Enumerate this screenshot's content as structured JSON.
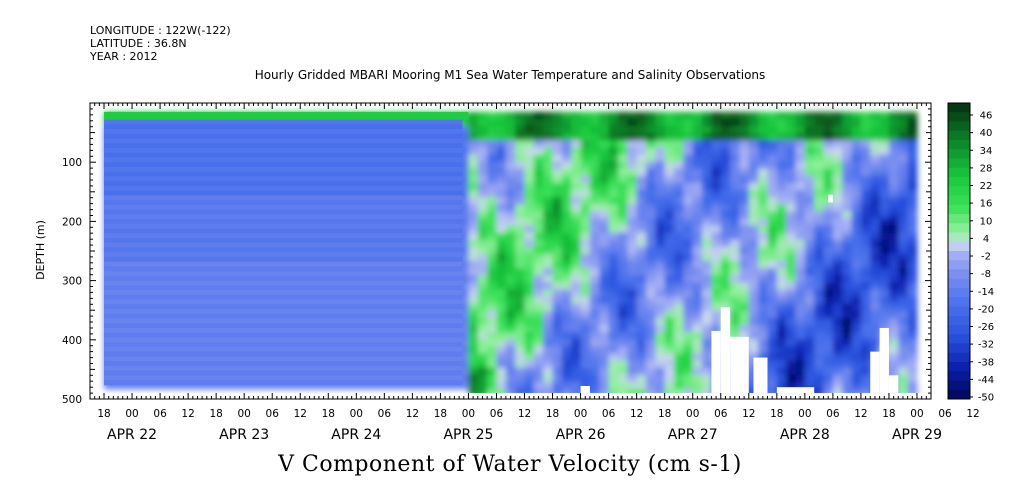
{
  "header": {
    "longitude": "LONGITUDE : 122W(-122)",
    "latitude": "LATITUDE : 36.8N",
    "year": "YEAR : 2012"
  },
  "chart_data": {
    "type": "heatmap",
    "title": "Hourly Gridded MBARI Mooring M1 Sea Water Temperature and Salinity Observations",
    "xlabel": "",
    "ylabel": "DEPTH (m)",
    "colorbar_title": "V Component of Water Velocity (cm s-1)",
    "y_ticks": [
      100,
      200,
      300,
      400,
      500
    ],
    "y_tick_labels": [
      "100",
      "200",
      "300",
      "400",
      "500"
    ],
    "ylim": [
      0,
      500
    ],
    "y_inverted": true,
    "hour_tick_labels": [
      "18",
      "00",
      "06",
      "12",
      "18",
      "00",
      "06",
      "12",
      "18",
      "00",
      "06",
      "12",
      "18",
      "00",
      "06",
      "12",
      "18",
      "00",
      "06",
      "12",
      "18",
      "00",
      "06",
      "12",
      "18",
      "00",
      "06",
      "12",
      "18",
      "00",
      "06",
      "12"
    ],
    "date_labels": [
      "APR 22",
      "APR 23",
      "APR 24",
      "APR 25",
      "APR 26",
      "APR 27",
      "APR 28",
      "APR 29"
    ],
    "x_range_hours": [
      -9,
      171
    ],
    "colorbar_levels": [
      -50,
      -44,
      -38,
      -32,
      -26,
      -20,
      -14,
      -8,
      -2,
      4,
      10,
      16,
      22,
      28,
      34,
      40,
      46
    ],
    "colorbar_labels": [
      "46",
      "40",
      "34",
      "28",
      "22",
      "16",
      "10",
      "4",
      "-2",
      "-8",
      "-14",
      "-20",
      "-26",
      "-32",
      "-38",
      "-44",
      "-50"
    ],
    "colors": {
      "strong_negative": "#000a66",
      "negative": "#2e4fe0",
      "weak_negative": "#9aa8f2",
      "weak_positive": "#b8f0b8",
      "positive": "#22dd44",
      "strong_positive": "#0a3a14"
    }
  }
}
